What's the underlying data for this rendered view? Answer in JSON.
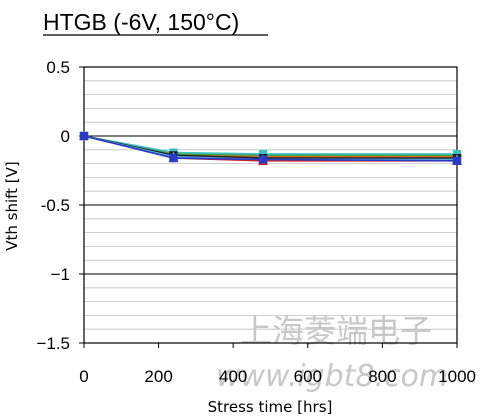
{
  "chart_data": {
    "type": "line",
    "title": "HTGB (-6V, 150°C)",
    "xlabel": "Stress time [hrs]",
    "ylabel": "Vth shift [V]",
    "xlim": [
      0,
      1000
    ],
    "ylim": [
      -1.5,
      0.5
    ],
    "x_ticks": [
      0,
      200,
      400,
      600,
      800,
      1000
    ],
    "x_tick_labels": [
      "0",
      "200",
      "400",
      "600",
      "800",
      "1000"
    ],
    "y_ticks": [
      0.5,
      0,
      -0.5,
      -1,
      -1.5
    ],
    "y_tick_labels": [
      "0.5",
      "0",
      "-0.5",
      "−1",
      "−1.5"
    ],
    "grid": {
      "horizontal_minor_step": 0.1,
      "major_values": [
        0,
        -0.5,
        -1
      ]
    },
    "legend": "none",
    "x": [
      0,
      240,
      480,
      1000
    ],
    "series": [
      {
        "values": [
          0,
          -0.15,
          -0.16,
          -0.17
        ],
        "color": "#1f2a8c",
        "marker": "square"
      },
      {
        "values": [
          0,
          -0.13,
          -0.14,
          -0.14
        ],
        "color": "#2aa84a",
        "marker": "diamond"
      },
      {
        "values": [
          0,
          -0.14,
          -0.15,
          -0.15
        ],
        "color": "#e06a20",
        "marker": "circle"
      },
      {
        "values": [
          0,
          -0.16,
          -0.18,
          -0.18
        ],
        "color": "#d02020",
        "marker": "triangle"
      },
      {
        "values": [
          0,
          -0.12,
          -0.13,
          -0.13
        ],
        "color": "#40c0c0",
        "marker": "square"
      },
      {
        "values": [
          0,
          -0.14,
          -0.16,
          -0.16
        ],
        "color": "#202020",
        "marker": "square"
      },
      {
        "values": [
          0,
          -0.15,
          -0.17,
          -0.17
        ],
        "color": "#50b0e0",
        "marker": "triangle"
      },
      {
        "values": [
          0,
          -0.16,
          -0.17,
          -0.18
        ],
        "color": "#283cc8",
        "marker": "square"
      }
    ]
  },
  "watermark": {
    "line1": "上海菱端电子",
    "line2": "www.igbt8.com"
  },
  "colors": {
    "grid_minor": "#bfbfbf",
    "grid_major": "#000000",
    "axis": "#000000",
    "watermark": "#c8c8c8"
  }
}
